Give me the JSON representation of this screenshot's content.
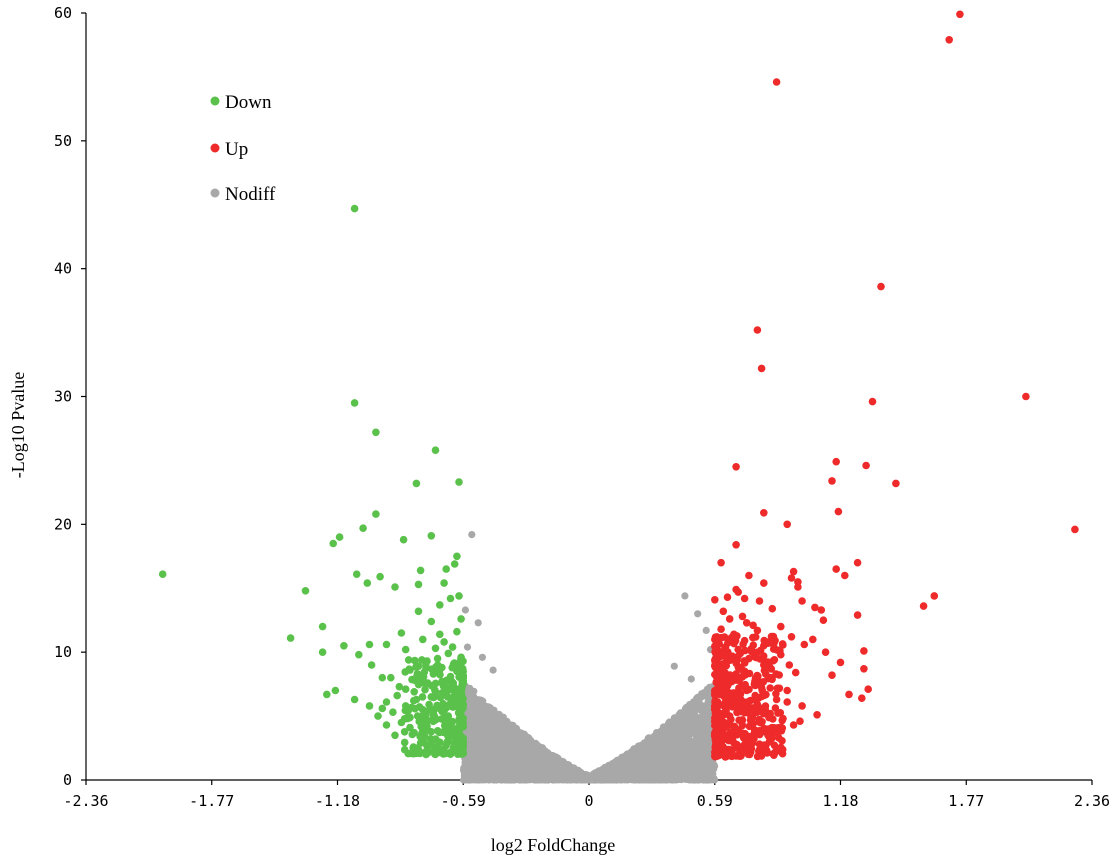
{
  "chart_data": {
    "type": "scatter",
    "xlabel": "log2 FoldChange",
    "ylabel": "-Log10 Pvalue",
    "xlim": [
      -2.36,
      2.36
    ],
    "ylim": [
      0,
      60
    ],
    "xticks": [
      "-2.36",
      "-1.77",
      "-1.18",
      "-0.59",
      "0",
      "0.59",
      "1.18",
      "1.77",
      "2.36"
    ],
    "yticks": [
      "0",
      "10",
      "20",
      "30",
      "40",
      "50",
      "60"
    ],
    "thresholds": [
      -0.59,
      0.59
    ],
    "legend": {
      "position": "top-left"
    },
    "series": [
      {
        "name": "Down",
        "color": "#5ac14b",
        "points": [
          [
            -1.1,
            44.7
          ],
          [
            -1.1,
            29.5
          ],
          [
            -1.0,
            27.2
          ],
          [
            -0.72,
            25.8
          ],
          [
            -0.61,
            23.3
          ],
          [
            -0.81,
            23.2
          ],
          [
            -1.0,
            20.8
          ],
          [
            -1.06,
            19.7
          ],
          [
            -0.74,
            19.1
          ],
          [
            -0.87,
            18.8
          ],
          [
            -1.17,
            19.0
          ],
          [
            -1.2,
            18.5
          ],
          [
            -0.62,
            17.5
          ],
          [
            -0.63,
            16.9
          ],
          [
            -0.67,
            16.5
          ],
          [
            -0.79,
            16.4
          ],
          [
            -1.09,
            16.1
          ],
          [
            -0.98,
            15.9
          ],
          [
            -1.04,
            15.4
          ],
          [
            -0.68,
            15.4
          ],
          [
            -0.8,
            15.3
          ],
          [
            -0.91,
            15.1
          ],
          [
            -1.33,
            14.8
          ],
          [
            -0.61,
            14.4
          ],
          [
            -0.65,
            14.2
          ],
          [
            -0.7,
            13.7
          ],
          [
            -0.8,
            13.2
          ],
          [
            -0.6,
            12.6
          ],
          [
            -0.74,
            12.4
          ],
          [
            -1.25,
            12.0
          ],
          [
            -0.62,
            11.6
          ],
          [
            -0.88,
            11.5
          ],
          [
            -0.7,
            11.4
          ],
          [
            -1.4,
            11.1
          ],
          [
            -0.78,
            11.0
          ],
          [
            -0.95,
            10.6
          ],
          [
            -1.03,
            10.6
          ],
          [
            -1.15,
            10.5
          ],
          [
            -0.64,
            10.4
          ],
          [
            -0.72,
            10.3
          ],
          [
            -0.86,
            10.2
          ],
          [
            -1.25,
            10.0
          ],
          [
            -0.66,
            9.9
          ],
          [
            -1.08,
            9.8
          ],
          [
            -0.6,
            9.6
          ],
          [
            -0.76,
            9.3
          ],
          [
            -1.02,
            9.0
          ],
          [
            -0.69,
            8.8
          ],
          [
            -0.84,
            8.6
          ],
          [
            -0.62,
            8.5
          ],
          [
            -0.73,
            8.3
          ],
          [
            -0.93,
            8.0
          ],
          [
            -0.97,
            8.0
          ],
          [
            -0.78,
            7.9
          ],
          [
            -0.65,
            7.8
          ],
          [
            -0.69,
            7.6
          ],
          [
            -0.89,
            7.3
          ],
          [
            -0.6,
            7.2
          ],
          [
            -1.19,
            7.0
          ],
          [
            -0.82,
            6.9
          ],
          [
            -1.23,
            6.7
          ],
          [
            -0.74,
            6.5
          ],
          [
            -1.1,
            6.3
          ],
          [
            -0.95,
            6.1
          ],
          [
            -0.63,
            6.0
          ],
          [
            -0.86,
            5.8
          ],
          [
            -1.03,
            5.8
          ],
          [
            -0.7,
            5.6
          ],
          [
            -0.78,
            5.5
          ],
          [
            -0.92,
            5.3
          ],
          [
            -0.61,
            5.2
          ],
          [
            -0.66,
            5.0
          ],
          [
            -0.99,
            5.0
          ],
          [
            -0.84,
            4.9
          ],
          [
            -0.72,
            4.7
          ],
          [
            -0.88,
            4.5
          ],
          [
            -0.6,
            4.4
          ],
          [
            -0.95,
            4.3
          ],
          [
            -0.76,
            4.2
          ],
          [
            -0.64,
            4.0
          ],
          [
            -0.68,
            3.8
          ],
          [
            -0.82,
            3.7
          ],
          [
            -0.91,
            3.5
          ],
          [
            -0.6,
            3.4
          ],
          [
            -0.72,
            3.2
          ],
          [
            -0.66,
            3.0
          ],
          [
            -0.79,
            2.9
          ],
          [
            -0.62,
            2.6
          ],
          [
            -0.7,
            2.4
          ],
          [
            -0.6,
            2.2
          ],
          [
            -0.75,
            5.9
          ],
          [
            -0.81,
            6.3
          ],
          [
            -0.69,
            6.8
          ],
          [
            -0.64,
            7.4
          ],
          [
            -0.86,
            7.1
          ],
          [
            -0.73,
            5.2
          ],
          [
            -0.67,
            4.6
          ],
          [
            -0.61,
            3.7
          ],
          [
            -0.77,
            3.4
          ],
          [
            -0.63,
            2.9
          ],
          [
            -0.84,
            4.1
          ],
          [
            -0.9,
            6.6
          ],
          [
            -0.97,
            5.6
          ],
          [
            -0.71,
            9.0
          ],
          [
            -0.65,
            8.1
          ],
          [
            -0.61,
            6.4
          ],
          [
            -0.8,
            8.9
          ],
          [
            -0.68,
            10.8
          ],
          [
            -2.0,
            16.1
          ]
        ]
      },
      {
        "name": "Up",
        "color": "#ee2a2a",
        "points": [
          [
            1.74,
            59.9
          ],
          [
            1.69,
            57.9
          ],
          [
            0.88,
            54.6
          ],
          [
            1.37,
            38.6
          ],
          [
            0.79,
            35.2
          ],
          [
            0.81,
            32.2
          ],
          [
            2.05,
            30.0
          ],
          [
            1.33,
            29.6
          ],
          [
            1.16,
            24.9
          ],
          [
            0.69,
            24.5
          ],
          [
            1.3,
            24.6
          ],
          [
            1.14,
            23.4
          ],
          [
            1.44,
            23.2
          ],
          [
            0.82,
            20.9
          ],
          [
            0.93,
            20.0
          ],
          [
            1.17,
            21.0
          ],
          [
            2.28,
            19.6
          ],
          [
            0.69,
            18.4
          ],
          [
            1.26,
            17.0
          ],
          [
            0.62,
            17.0
          ],
          [
            1.16,
            16.5
          ],
          [
            0.96,
            16.3
          ],
          [
            1.2,
            16.0
          ],
          [
            0.75,
            16.0
          ],
          [
            0.95,
            15.8
          ],
          [
            0.98,
            15.5
          ],
          [
            0.82,
            15.4
          ],
          [
            1.62,
            14.4
          ],
          [
            0.98,
            15.1
          ],
          [
            0.69,
            14.9
          ],
          [
            0.7,
            14.7
          ],
          [
            0.65,
            14.3
          ],
          [
            1.57,
            13.6
          ],
          [
            0.73,
            14.2
          ],
          [
            0.59,
            14.1
          ],
          [
            0.8,
            14.0
          ],
          [
            1.0,
            14.0
          ],
          [
            1.06,
            13.5
          ],
          [
            0.86,
            13.4
          ],
          [
            0.63,
            13.2
          ],
          [
            1.09,
            13.3
          ],
          [
            0.72,
            12.8
          ],
          [
            1.26,
            12.9
          ],
          [
            1.1,
            12.5
          ],
          [
            0.77,
            12.1
          ],
          [
            0.62,
            11.8
          ],
          [
            0.68,
            11.4
          ],
          [
            0.95,
            11.2
          ],
          [
            1.05,
            11.0
          ],
          [
            0.84,
            10.7
          ],
          [
            0.6,
            10.5
          ],
          [
            1.01,
            10.6
          ],
          [
            0.7,
            10.2
          ],
          [
            1.11,
            10.0
          ],
          [
            1.29,
            10.1
          ],
          [
            0.9,
            9.8
          ],
          [
            0.65,
            9.7
          ],
          [
            0.75,
            9.5
          ],
          [
            1.18,
            9.2
          ],
          [
            0.82,
            9.0
          ],
          [
            0.62,
            8.8
          ],
          [
            1.29,
            8.7
          ],
          [
            0.72,
            8.6
          ],
          [
            0.97,
            8.4
          ],
          [
            1.14,
            8.2
          ],
          [
            0.6,
            8.0
          ],
          [
            0.85,
            8.0
          ],
          [
            0.67,
            7.7
          ],
          [
            0.78,
            7.4
          ],
          [
            1.31,
            7.1
          ],
          [
            0.93,
            7.0
          ],
          [
            0.61,
            6.8
          ],
          [
            1.22,
            6.7
          ],
          [
            0.7,
            6.5
          ],
          [
            0.88,
            6.3
          ],
          [
            1.28,
            6.4
          ],
          [
            0.64,
            6.1
          ],
          [
            0.79,
            5.9
          ],
          [
            1.0,
            5.8
          ],
          [
            0.6,
            5.5
          ],
          [
            0.73,
            5.4
          ],
          [
            0.85,
            5.2
          ],
          [
            1.07,
            5.1
          ],
          [
            0.66,
            5.0
          ],
          [
            0.91,
            4.8
          ],
          [
            0.62,
            4.6
          ],
          [
            0.77,
            4.4
          ],
          [
            0.96,
            4.3
          ],
          [
            0.6,
            4.1
          ],
          [
            0.7,
            3.9
          ],
          [
            0.82,
            3.8
          ],
          [
            0.63,
            3.6
          ],
          [
            0.75,
            3.4
          ],
          [
            0.89,
            3.3
          ],
          [
            0.6,
            3.1
          ],
          [
            0.68,
            2.9
          ],
          [
            0.8,
            2.8
          ],
          [
            0.62,
            2.6
          ],
          [
            0.72,
            2.4
          ],
          [
            0.6,
            2.2
          ],
          [
            0.66,
            2.0
          ],
          [
            0.78,
            6.6
          ],
          [
            0.85,
            7.2
          ],
          [
            0.69,
            8.3
          ],
          [
            0.74,
            7.0
          ],
          [
            0.81,
            5.6
          ],
          [
            0.93,
            6.1
          ],
          [
            0.64,
            9.2
          ],
          [
            0.71,
            9.9
          ],
          [
            0.87,
            9.4
          ],
          [
            0.63,
            7.3
          ],
          [
            0.76,
            4.9
          ],
          [
            0.68,
            5.8
          ],
          [
            0.99,
            4.6
          ],
          [
            0.84,
            3.5
          ],
          [
            0.61,
            5.9
          ],
          [
            0.73,
            10.9
          ],
          [
            0.9,
            12.0
          ],
          [
            0.66,
            12.6
          ],
          [
            0.79,
            11.7
          ],
          [
            0.61,
            4.8
          ],
          [
            0.66,
            3.2
          ],
          [
            0.7,
            6.9
          ],
          [
            0.83,
            8.8
          ],
          [
            0.94,
            9.0
          ],
          [
            0.74,
            12.3
          ]
        ]
      },
      {
        "name": "Nodiff",
        "color": "#a8a8a8",
        "note": "",
        "points": []
      }
    ]
  }
}
